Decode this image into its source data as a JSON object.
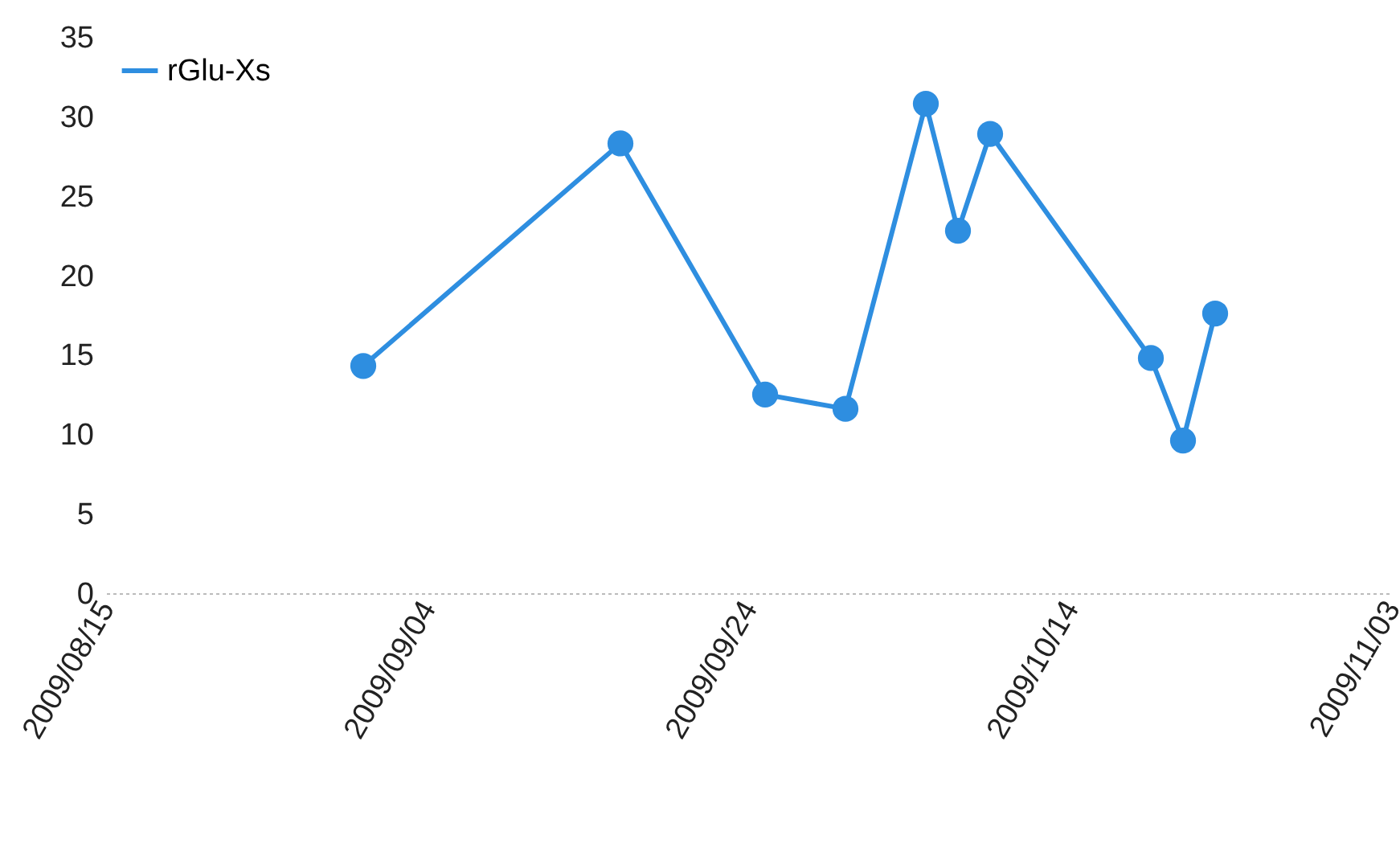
{
  "chart_data": {
    "type": "line",
    "x": [
      "2009-08-31",
      "2009-09-16",
      "2009-09-25",
      "2009-09-30",
      "2009-10-05",
      "2009-10-07",
      "2009-10-09",
      "2009-10-19",
      "2009-10-21",
      "2009-10-23"
    ],
    "series": [
      {
        "name": "rGlu-Xs",
        "color": "#2e8ee0",
        "values": [
          14.3,
          28.3,
          12.5,
          11.6,
          30.8,
          22.8,
          28.9,
          14.8,
          9.6,
          17.6
        ]
      }
    ],
    "xlim": [
      "2009-08-15",
      "2009-11-03"
    ],
    "xticks": [
      {
        "value": "2009-08-15",
        "label": "2009/08/15"
      },
      {
        "value": "2009-09-04",
        "label": "2009/09/04"
      },
      {
        "value": "2009-09-24",
        "label": "2009/09/24"
      },
      {
        "value": "2009-10-14",
        "label": "2009/10/14"
      },
      {
        "value": "2009-11-03",
        "label": "2009/11/03"
      }
    ],
    "ylim": [
      0,
      35
    ],
    "yticks": [
      0,
      5,
      10,
      15,
      20,
      25,
      30,
      35
    ],
    "legend": "top left",
    "marker": "circle",
    "line_style": "solid",
    "grid": false
  }
}
